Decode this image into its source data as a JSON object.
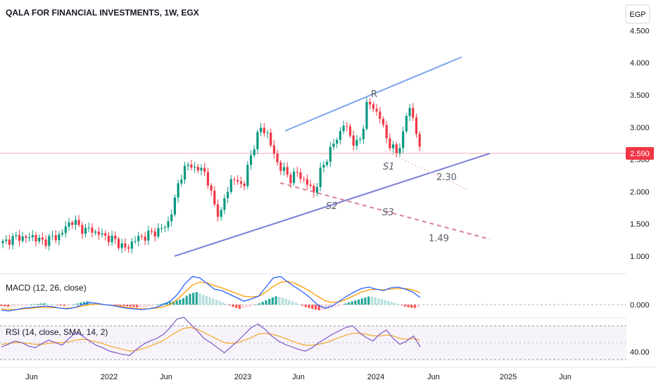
{
  "header": {
    "title": "QALA FOR FINANCIAL INVESTMENTS, 1W, EGX",
    "currency_label": "EGP"
  },
  "chart_data": {
    "type": "candlestick",
    "symbol": "QALA FOR FINANCIAL INVESTMENTS",
    "interval": "1W",
    "exchange": "EGX",
    "currency": "EGP",
    "last_price": "2.590",
    "y_ticks": [
      "4.500",
      "4.000",
      "3.500",
      "3.000",
      "2.500",
      "2.000",
      "1.500",
      "1.000"
    ],
    "x_ticks": [
      "Jun",
      "2022",
      "Jun",
      "2023",
      "Jun",
      "2024",
      "Jun",
      "2025",
      "Jun"
    ],
    "colors": {
      "up": "#089981",
      "down": "#f23645",
      "trendline": "#7b7fd6",
      "resistance": "#7ea6ee",
      "support": "#d9838f",
      "macd": "#2962ff",
      "signal": "#ff9800",
      "rsi": "#7e57c2",
      "rsi_ma": "#f5a623"
    },
    "close_path": [
      1.2,
      1.25,
      1.28,
      1.3,
      1.27,
      1.32,
      1.25,
      1.22,
      1.28,
      1.3,
      1.34,
      1.5,
      1.55,
      1.45,
      1.4,
      1.42,
      1.35,
      1.33,
      1.28,
      1.25,
      1.18,
      1.1,
      1.22,
      1.28,
      1.3,
      1.35,
      1.38,
      1.42,
      1.5,
      1.75,
      2.2,
      2.35,
      2.45,
      2.3,
      2.4,
      2.1,
      1.8,
      1.6,
      2.0,
      2.2,
      2.15,
      2.1,
      2.5,
      2.8,
      3.0,
      2.9,
      2.6,
      2.4,
      2.3,
      2.2,
      2.3,
      2.2,
      2.1,
      1.98,
      2.3,
      2.5,
      2.7,
      2.85,
      3.05,
      2.9,
      2.7,
      2.85,
      3.4,
      3.3,
      3.2,
      2.9,
      2.7,
      2.6,
      2.85,
      3.35,
      3.1,
      2.59
    ],
    "annotations": {
      "resistance_label": "R",
      "support_labels": [
        "S1",
        "S2",
        "S3"
      ],
      "targets": [
        "2.30",
        "1.49"
      ]
    },
    "macd": {
      "label": "MACD (12, 26, close)",
      "tick": "0.000",
      "hist_path": [
        -0.02,
        -0.03,
        -0.02,
        -0.01,
        0.0,
        0.01,
        0.02,
        0.01,
        -0.01,
        -0.02,
        0.0,
        0.03,
        0.05,
        0.03,
        0.01,
        0.0,
        -0.01,
        -0.02,
        -0.03,
        -0.04,
        -0.03,
        -0.01,
        0.01,
        0.03,
        0.05,
        0.08,
        0.15,
        0.18,
        0.14,
        0.1,
        0.06,
        0.02,
        -0.03,
        -0.06,
        -0.04,
        -0.01,
        0.03,
        0.08,
        0.12,
        0.1,
        0.06,
        0.02,
        -0.03,
        -0.06,
        -0.08,
        -0.07,
        -0.04,
        -0.01,
        0.03,
        0.06,
        0.09,
        0.12,
        0.1,
        0.07,
        0.04,
        0.01,
        -0.03,
        -0.05,
        -0.04
      ],
      "macd_path": [
        -0.08,
        -0.09,
        -0.07,
        -0.05,
        -0.04,
        -0.03,
        -0.02,
        -0.03,
        -0.05,
        -0.06,
        -0.04,
        0.0,
        0.03,
        0.02,
        0.0,
        -0.01,
        -0.03,
        -0.05,
        -0.06,
        -0.07,
        -0.06,
        -0.04,
        0.0,
        0.05,
        0.15,
        0.3,
        0.4,
        0.38,
        0.3,
        0.22,
        0.2,
        0.15,
        0.1,
        0.05,
        0.08,
        0.12,
        0.25,
        0.38,
        0.4,
        0.32,
        0.25,
        0.18,
        0.1,
        0.0,
        -0.05,
        -0.02,
        0.05,
        0.12,
        0.18,
        0.23,
        0.25,
        0.22,
        0.2,
        0.24,
        0.25,
        0.22,
        0.18,
        0.1
      ],
      "signal_path": [
        -0.06,
        -0.07,
        -0.07,
        -0.06,
        -0.05,
        -0.04,
        -0.04,
        -0.04,
        -0.05,
        -0.05,
        -0.04,
        -0.02,
        0.0,
        0.01,
        0.0,
        -0.01,
        -0.02,
        -0.04,
        -0.05,
        -0.06,
        -0.06,
        -0.05,
        -0.03,
        0.0,
        0.08,
        0.18,
        0.28,
        0.32,
        0.31,
        0.27,
        0.24,
        0.2,
        0.16,
        0.12,
        0.11,
        0.12,
        0.18,
        0.26,
        0.32,
        0.33,
        0.3,
        0.25,
        0.19,
        0.12,
        0.06,
        0.03,
        0.04,
        0.08,
        0.13,
        0.18,
        0.21,
        0.22,
        0.21,
        0.22,
        0.23,
        0.23,
        0.21,
        0.17
      ]
    },
    "rsi": {
      "label": "RSI (14, close, SMA, 14, 2)",
      "tick": "40.00",
      "rsi_path": [
        45,
        48,
        52,
        50,
        46,
        44,
        49,
        53,
        50,
        47,
        55,
        62,
        58,
        52,
        47,
        44,
        40,
        38,
        36,
        35,
        42,
        48,
        52,
        55,
        60,
        68,
        78,
        80,
        72,
        64,
        55,
        50,
        44,
        38,
        45,
        52,
        60,
        68,
        72,
        66,
        58,
        52,
        48,
        45,
        42,
        40,
        44,
        50,
        55,
        60,
        64,
        68,
        70,
        62,
        56,
        52,
        60,
        65,
        55,
        48,
        52,
        58,
        45
      ],
      "ma_path": [
        48,
        49,
        50,
        50,
        49,
        48,
        48,
        49,
        50,
        50,
        51,
        53,
        54,
        53,
        51,
        49,
        46,
        44,
        42,
        40,
        41,
        43,
        46,
        49,
        53,
        58,
        63,
        67,
        68,
        66,
        62,
        58,
        54,
        50,
        49,
        50,
        53,
        56,
        60,
        61,
        60,
        58,
        55,
        52,
        49,
        47,
        47,
        48,
        50,
        53,
        56,
        59,
        61,
        61,
        60,
        58,
        58,
        59,
        58,
        55,
        54,
        55,
        53
      ]
    }
  }
}
